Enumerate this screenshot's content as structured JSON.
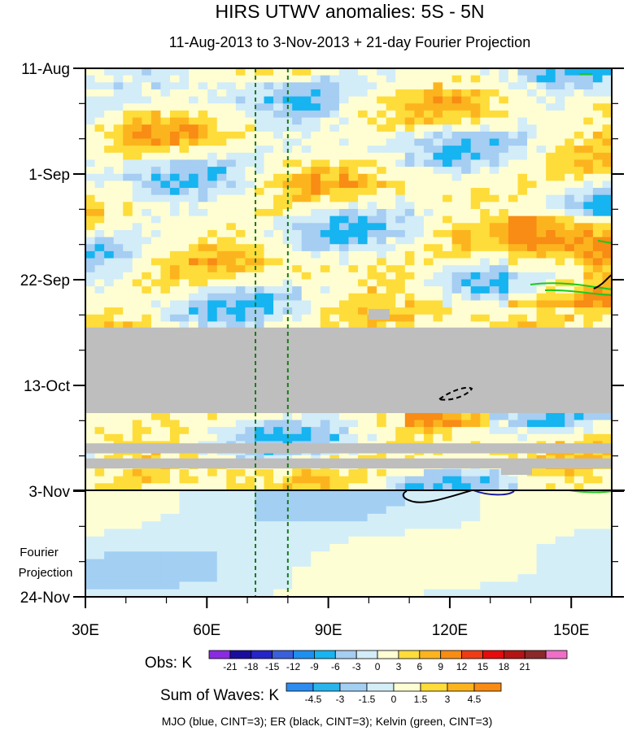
{
  "chart_data": {
    "type": "heatmap",
    "title": "HIRS UTWV anomalies: 5S - 5N",
    "subtitle": "11-Aug-2013 to 3-Nov-2013 + 21-day Fourier Projection",
    "x_axis": {
      "range": [
        30,
        160
      ],
      "ticks": [
        30,
        60,
        90,
        120,
        150
      ],
      "tick_labels": [
        "30E",
        "60E",
        "90E",
        "120E",
        "150E"
      ]
    },
    "y_axis": {
      "range_days": [
        0,
        105
      ],
      "ticks_days": [
        0,
        21,
        42,
        63,
        84,
        105
      ],
      "tick_labels": [
        "11-Aug",
        "1-Sep",
        "22-Sep",
        "13-Oct",
        "3-Nov",
        "24-Nov"
      ],
      "reversed": true
    },
    "projection_start_day": 84,
    "projection_label": [
      "Fourier",
      "Projection"
    ],
    "reference_lines_lon": [
      72,
      80
    ],
    "missing_data_bands_days": [
      [
        51.5,
        68.5
      ],
      [
        74.5,
        76.5
      ],
      [
        77.5,
        79.5
      ]
    ],
    "contours": [
      {
        "name": "MJO",
        "color": "#1a1aa0",
        "cint": 3
      },
      {
        "name": "ER",
        "color": "#000000",
        "cint": 3
      },
      {
        "name": "Kelvin",
        "color": "#1ec81e",
        "cint": 3
      }
    ],
    "obs_colorbar": {
      "label": "Obs: K",
      "levels": [
        "-21",
        "-18",
        "-15",
        "-12",
        "-9",
        "-6",
        "-3",
        "0",
        "3",
        "6",
        "9",
        "12",
        "15",
        "18",
        "21"
      ],
      "colors": [
        "#8a2be2",
        "#1a0d9e",
        "#2424c8",
        "#3a5fdb",
        "#1e8ff0",
        "#16b4f0",
        "#a6cdf2",
        "#d2ecf8",
        "#fefed2",
        "#fedc3a",
        "#fcb41e",
        "#f88c14",
        "#f03c14",
        "#e60c0c",
        "#b41414",
        "#8c2828",
        "#f06ec8"
      ]
    },
    "waves_colorbar": {
      "label": "Sum of Waves: K",
      "levels": [
        "-4.5",
        "-3",
        "-1.5",
        "0",
        "1.5",
        "3",
        "4.5"
      ],
      "colors": [
        "#2d8cf0",
        "#2ab4ec",
        "#a3cff3",
        "#d4eef8",
        "#fefed4",
        "#fedc3a",
        "#fcb41e",
        "#f88c14"
      ]
    },
    "footnote": "MJO (blue, CINT=3); ER (black, CINT=3); Kelvin (green, CINT=3)"
  }
}
